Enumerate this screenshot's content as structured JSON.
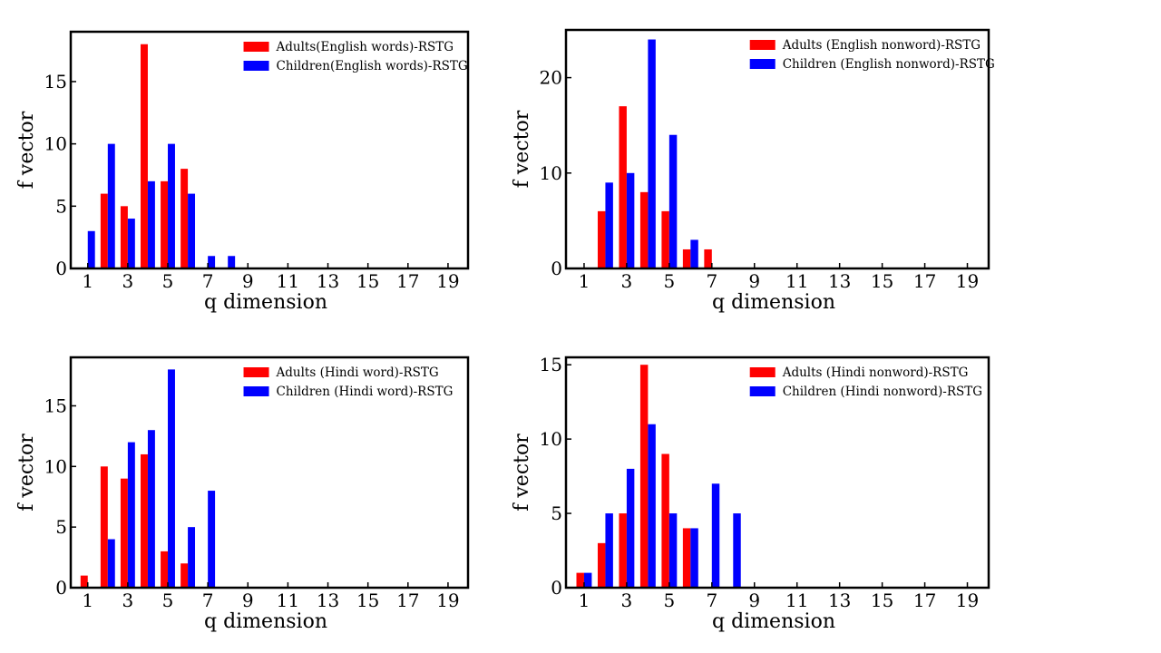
{
  "figure": {
    "colors": {
      "adults": "#ff0000",
      "children": "#0000ff",
      "axes": "#000000"
    }
  },
  "chart_data": [
    {
      "type": "bar",
      "xlabel": "q dimension",
      "ylabel": "f vector",
      "x": [
        1,
        2,
        3,
        4,
        5,
        6,
        7,
        8,
        9,
        10,
        11,
        12,
        13,
        14,
        15,
        16,
        17,
        18,
        19,
        20
      ],
      "xticks": [
        1,
        3,
        5,
        7,
        9,
        11,
        13,
        15,
        17,
        19
      ],
      "yticks": [
        0,
        5,
        10,
        15
      ],
      "ylim": [
        0,
        19
      ],
      "legend_position": "top-right",
      "series": [
        {
          "name": "Adults(English words)-RSTG",
          "color": "#ff0000",
          "values": [
            0,
            6,
            5,
            18,
            7,
            8,
            0,
            0,
            0,
            0,
            0,
            0,
            0,
            0,
            0,
            0,
            0,
            0,
            0,
            0
          ]
        },
        {
          "name": "Children(English words)-RSTG",
          "color": "#0000ff",
          "values": [
            3,
            10,
            4,
            7,
            10,
            6,
            1,
            1,
            0,
            0,
            0,
            0,
            0,
            0,
            0,
            0,
            0,
            0,
            0,
            0
          ]
        }
      ]
    },
    {
      "type": "bar",
      "xlabel": "q dimension",
      "ylabel": "f vector",
      "x": [
        1,
        2,
        3,
        4,
        5,
        6,
        7,
        8,
        9,
        10,
        11,
        12,
        13,
        14,
        15,
        16,
        17,
        18,
        19,
        20
      ],
      "xticks": [
        1,
        3,
        5,
        7,
        9,
        11,
        13,
        15,
        17,
        19
      ],
      "yticks": [
        0,
        10,
        20
      ],
      "ylim": [
        0,
        25
      ],
      "legend_position": "top-right",
      "series": [
        {
          "name": "Adults (English nonword)-RSTG",
          "color": "#ff0000",
          "values": [
            0,
            6,
            17,
            8,
            6,
            2,
            2,
            0,
            0,
            0,
            0,
            0,
            0,
            0,
            0,
            0,
            0,
            0,
            0,
            0
          ]
        },
        {
          "name": "Children (English nonword)-RSTG",
          "color": "#0000ff",
          "values": [
            0,
            9,
            10,
            24,
            14,
            3,
            0,
            0,
            0,
            0,
            0,
            0,
            0,
            0,
            0,
            0,
            0,
            0,
            0,
            0
          ]
        }
      ]
    },
    {
      "type": "bar",
      "xlabel": "q dimension",
      "ylabel": "f vector",
      "x": [
        1,
        2,
        3,
        4,
        5,
        6,
        7,
        8,
        9,
        10,
        11,
        12,
        13,
        14,
        15,
        16,
        17,
        18,
        19,
        20
      ],
      "xticks": [
        1,
        3,
        5,
        7,
        9,
        11,
        13,
        15,
        17,
        19
      ],
      "yticks": [
        0,
        5,
        10,
        15
      ],
      "ylim": [
        0,
        19
      ],
      "legend_position": "top-right",
      "series": [
        {
          "name": "Adults (Hindi word)-RSTG",
          "color": "#ff0000",
          "values": [
            1,
            10,
            9,
            11,
            3,
            2,
            0,
            0,
            0,
            0,
            0,
            0,
            0,
            0,
            0,
            0,
            0,
            0,
            0,
            0
          ]
        },
        {
          "name": "Children (Hindi word)-RSTG",
          "color": "#0000ff",
          "values": [
            0,
            4,
            12,
            13,
            18,
            5,
            8,
            0,
            0,
            0,
            0,
            0,
            0,
            0,
            0,
            0,
            0,
            0,
            0,
            0
          ]
        }
      ]
    },
    {
      "type": "bar",
      "xlabel": "q dimension",
      "ylabel": "f vector",
      "x": [
        1,
        2,
        3,
        4,
        5,
        6,
        7,
        8,
        9,
        10,
        11,
        12,
        13,
        14,
        15,
        16,
        17,
        18,
        19,
        20
      ],
      "xticks": [
        1,
        3,
        5,
        7,
        9,
        11,
        13,
        15,
        17,
        19
      ],
      "yticks": [
        0,
        5,
        10,
        15
      ],
      "ylim": [
        0,
        15.5
      ],
      "legend_position": "top-right",
      "series": [
        {
          "name": "Adults (Hindi nonword)-RSTG",
          "color": "#ff0000",
          "values": [
            1,
            3,
            5,
            15,
            9,
            4,
            0,
            0,
            0,
            0,
            0,
            0,
            0,
            0,
            0,
            0,
            0,
            0,
            0,
            0
          ]
        },
        {
          "name": "Children (Hindi nonword)-RSTG",
          "color": "#0000ff",
          "values": [
            1,
            5,
            8,
            11,
            5,
            4,
            7,
            5,
            0,
            0,
            0,
            0,
            0,
            0,
            0,
            0,
            0,
            0,
            0,
            0
          ]
        }
      ]
    }
  ]
}
